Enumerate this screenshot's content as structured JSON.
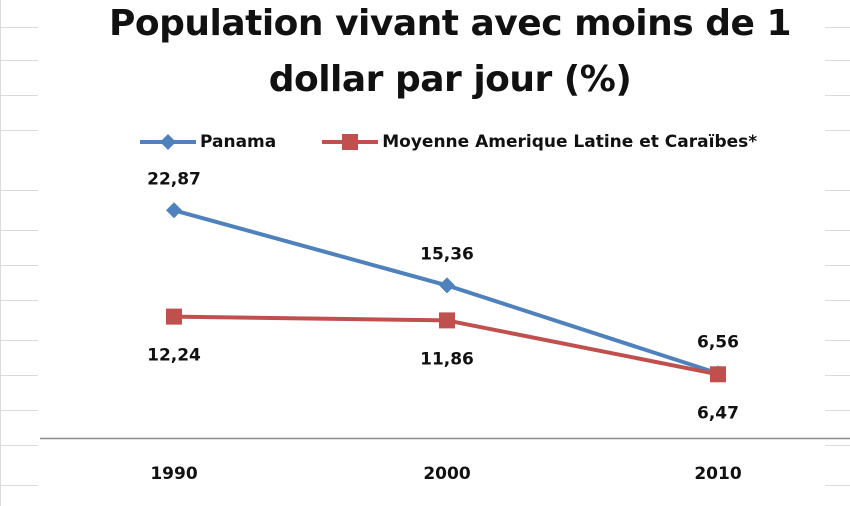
{
  "chart_data": {
    "type": "line",
    "title_lines": [
      "Population vivant avec moins de 1",
      "dollar par jour (%)"
    ],
    "categories": [
      "1990",
      "2000",
      "2010"
    ],
    "series": [
      {
        "name": "Panama",
        "values": [
          22.87,
          15.36,
          6.56
        ],
        "labels": [
          "22,87",
          "15,36",
          "6,56"
        ],
        "color": "#4f81bd",
        "marker": "diamond",
        "label_position": "above"
      },
      {
        "name": "Moyenne Amerique Latine et Caraïbes*",
        "values": [
          12.24,
          11.86,
          6.47
        ],
        "labels": [
          "12,24",
          "11,86",
          "6,47"
        ],
        "color": "#c0504d",
        "marker": "square",
        "label_position": "below"
      }
    ],
    "xlabel": "",
    "ylabel": "",
    "grid": false,
    "legend_position": "top"
  }
}
